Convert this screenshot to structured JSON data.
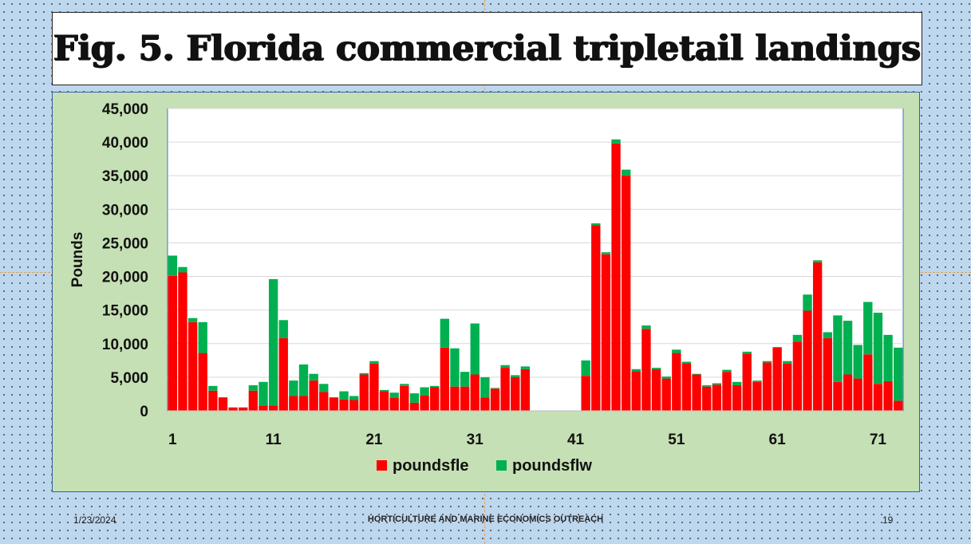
{
  "slide": {
    "title": "Fig. 5. Florida commercial tripletail landings",
    "footer_date": "1/23/2024",
    "footer_center": "HORTICULTURE AND MARINE ECONOMICS OUTREACH",
    "page_number": "19"
  },
  "chart_data": {
    "type": "bar",
    "stacked": true,
    "title": "",
    "xlabel": "",
    "ylabel": "Pounds",
    "ylim": [
      0,
      45000
    ],
    "yticks": [
      0,
      5000,
      10000,
      15000,
      20000,
      25000,
      30000,
      35000,
      40000,
      45000
    ],
    "ytick_labels": [
      "0",
      "5,000",
      "10,000",
      "15,000",
      "20,000",
      "25,000",
      "30,000",
      "35,000",
      "40,000",
      "45,000"
    ],
    "xtick_labels": [
      "1",
      "11",
      "21",
      "31",
      "41",
      "51",
      "61",
      "71"
    ],
    "xtick_positions": [
      1,
      11,
      21,
      31,
      41,
      51,
      61,
      71
    ],
    "grid": true,
    "legend_position": "bottom",
    "colors": {
      "poundsfle": "#ff0000",
      "poundsflw": "#00b050"
    },
    "x": [
      1,
      2,
      3,
      4,
      5,
      6,
      7,
      8,
      9,
      10,
      11,
      12,
      13,
      14,
      15,
      16,
      17,
      18,
      19,
      20,
      21,
      22,
      23,
      24,
      25,
      26,
      27,
      28,
      29,
      30,
      31,
      32,
      33,
      34,
      35,
      36,
      37,
      38,
      39,
      40,
      41,
      42,
      43,
      44,
      45,
      46,
      47,
      48,
      49,
      50,
      51,
      52,
      53,
      54,
      55,
      56,
      57,
      58,
      59,
      60,
      61,
      62,
      63,
      64,
      65,
      66,
      67,
      68,
      69,
      70,
      71,
      72,
      73
    ],
    "series": [
      {
        "name": "poundsfle",
        "values": [
          20100,
          20600,
          13200,
          8600,
          3000,
          2000,
          500,
          500,
          3000,
          800,
          800,
          10800,
          2200,
          2200,
          4500,
          2800,
          2000,
          1700,
          1600,
          5400,
          7000,
          2900,
          1900,
          3700,
          1200,
          2300,
          3500,
          9400,
          3600,
          3600,
          5400,
          2000,
          3300,
          6400,
          5000,
          6200,
          0,
          0,
          0,
          0,
          0,
          5200,
          27600,
          23300,
          39800,
          35000,
          5900,
          12200,
          6200,
          4800,
          8600,
          7100,
          5400,
          3600,
          3900,
          5800,
          3800,
          8500,
          4300,
          7200,
          9400,
          7000,
          10300,
          14900,
          22100,
          10800,
          4300,
          5400,
          4800,
          8400,
          4000,
          4400,
          1500
        ]
      },
      {
        "name": "poundsflw",
        "values": [
          3000,
          800,
          600,
          4600,
          700,
          0,
          0,
          0,
          800,
          3500,
          18800,
          2700,
          2300,
          4700,
          1000,
          1200,
          0,
          1200,
          600,
          200,
          400,
          200,
          800,
          300,
          1400,
          1200,
          200,
          4300,
          5700,
          2200,
          7600,
          3000,
          100,
          400,
          300,
          400,
          0,
          0,
          0,
          0,
          0,
          2300,
          300,
          300,
          600,
          900,
          300,
          500,
          200,
          300,
          500,
          200,
          100,
          200,
          200,
          300,
          500,
          300,
          200,
          200,
          100,
          400,
          1000,
          2400,
          300,
          900,
          9900,
          8000,
          5000,
          7800,
          10600,
          6900,
          7900
        ]
      }
    ]
  }
}
